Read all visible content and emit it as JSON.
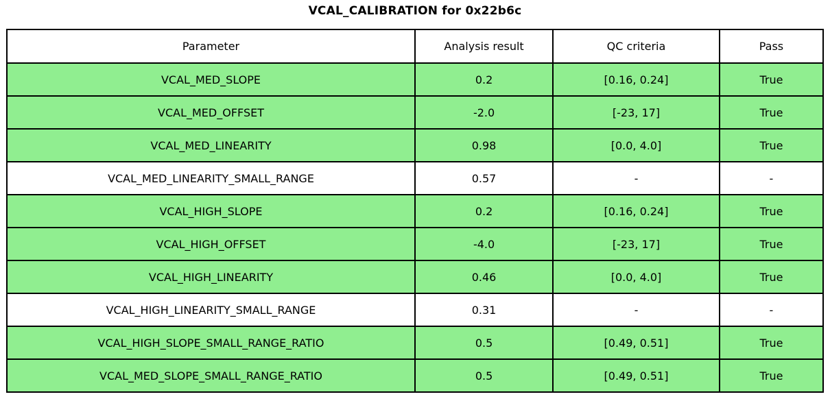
{
  "chart_data": {
    "type": "table",
    "title": "VCAL_CALIBRATION for 0x22b6c",
    "columns": [
      "Parameter",
      "Analysis result",
      "QC criteria",
      "Pass"
    ],
    "rows": [
      {
        "parameter": "VCAL_MED_SLOPE",
        "analysis_result": "0.2",
        "qc_criteria": "[0.16, 0.24]",
        "pass": "True",
        "highlighted": true
      },
      {
        "parameter": "VCAL_MED_OFFSET",
        "analysis_result": "-2.0",
        "qc_criteria": "[-23, 17]",
        "pass": "True",
        "highlighted": true
      },
      {
        "parameter": "VCAL_MED_LINEARITY",
        "analysis_result": "0.98",
        "qc_criteria": "[0.0, 4.0]",
        "pass": "True",
        "highlighted": true
      },
      {
        "parameter": "VCAL_MED_LINEARITY_SMALL_RANGE",
        "analysis_result": "0.57",
        "qc_criteria": "-",
        "pass": "-",
        "highlighted": false
      },
      {
        "parameter": "VCAL_HIGH_SLOPE",
        "analysis_result": "0.2",
        "qc_criteria": "[0.16, 0.24]",
        "pass": "True",
        "highlighted": true
      },
      {
        "parameter": "VCAL_HIGH_OFFSET",
        "analysis_result": "-4.0",
        "qc_criteria": "[-23, 17]",
        "pass": "True",
        "highlighted": true
      },
      {
        "parameter": "VCAL_HIGH_LINEARITY",
        "analysis_result": "0.46",
        "qc_criteria": "[0.0, 4.0]",
        "pass": "True",
        "highlighted": true
      },
      {
        "parameter": "VCAL_HIGH_LINEARITY_SMALL_RANGE",
        "analysis_result": "0.31",
        "qc_criteria": "-",
        "pass": "-",
        "highlighted": false
      },
      {
        "parameter": "VCAL_HIGH_SLOPE_SMALL_RANGE_RATIO",
        "analysis_result": "0.5",
        "qc_criteria": "[0.49, 0.51]",
        "pass": "True",
        "highlighted": true
      },
      {
        "parameter": "VCAL_MED_SLOPE_SMALL_RANGE_RATIO",
        "analysis_result": "0.5",
        "qc_criteria": "[0.49, 0.51]",
        "pass": "True",
        "highlighted": true
      }
    ],
    "colors": {
      "pass_row_bg": "#90EE90",
      "neutral_row_bg": "#FFFFFF",
      "border": "#000000",
      "text": "#000000"
    },
    "legend_position": "none",
    "grid": true
  }
}
